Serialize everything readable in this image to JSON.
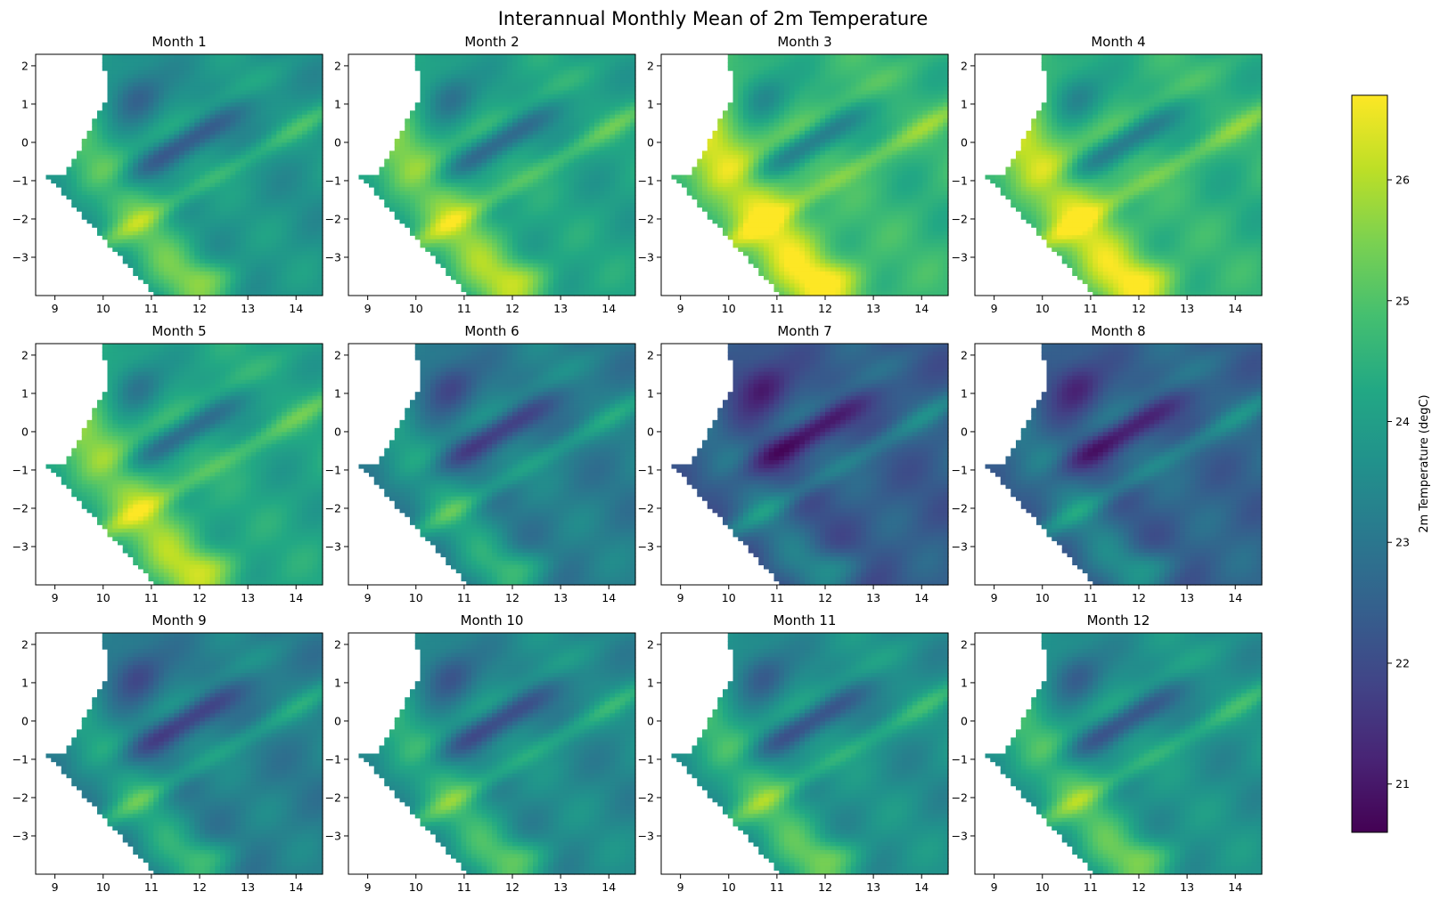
{
  "title": "Interannual Monthly Mean of 2m Temperature",
  "chart_data": {
    "type": "heatmap",
    "title": "Interannual Monthly Mean of 2m Temperature",
    "colormap": "viridis",
    "panels": [
      {
        "month": 1,
        "title": "Month 1",
        "mean_offset": 0.0
      },
      {
        "month": 2,
        "title": "Month 2",
        "mean_offset": 0.35
      },
      {
        "month": 3,
        "title": "Month 3",
        "mean_offset": 0.85
      },
      {
        "month": 4,
        "title": "Month 4",
        "mean_offset": 0.75
      },
      {
        "month": 5,
        "title": "Month 5",
        "mean_offset": 0.4
      },
      {
        "month": 6,
        "title": "Month 6",
        "mean_offset": -0.6
      },
      {
        "month": 7,
        "title": "Month 7",
        "mean_offset": -1.35
      },
      {
        "month": 8,
        "title": "Month 8",
        "mean_offset": -1.2
      },
      {
        "month": 9,
        "title": "Month 9",
        "mean_offset": -0.55
      },
      {
        "month": 10,
        "title": "Month 10",
        "mean_offset": -0.3
      },
      {
        "month": 11,
        "title": "Month 11",
        "mean_offset": -0.15
      },
      {
        "month": 12,
        "title": "Month 12",
        "mean_offset": -0.1
      }
    ],
    "xlim": [
      8.6,
      14.55
    ],
    "ylim": [
      -4.0,
      2.3
    ],
    "x_ticks": [
      9,
      10,
      11,
      12,
      13,
      14
    ],
    "x_tick_labels": [
      "9",
      "10",
      "11",
      "12",
      "13",
      "14"
    ],
    "y_ticks": [
      2,
      1,
      0,
      -1,
      -2,
      -3
    ],
    "y_tick_labels": [
      "2",
      "1",
      "0",
      "−1",
      "−2",
      "−3"
    ],
    "colorbar": {
      "label": "2m Temperature (degC)",
      "vmin": 20.6,
      "vmax": 26.7,
      "ticks": [
        21,
        22,
        23,
        24,
        25,
        26
      ],
      "tick_labels": [
        "21",
        "22",
        "23",
        "24",
        "25",
        "26"
      ]
    }
  }
}
